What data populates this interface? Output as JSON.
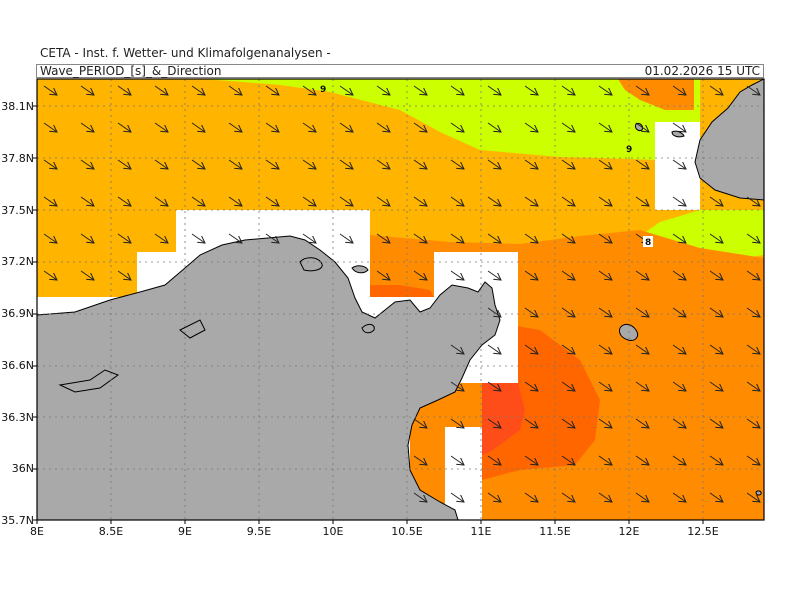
{
  "header": {
    "agency": "CETA - Inst. f. Wetter- und Klimafolgenanalysen -",
    "product": "Wave_PERIOD_[s]_&_Direction",
    "valid_time": "01.02.2026 15 UTC"
  },
  "axes": {
    "lon_labels": [
      "8E",
      "8.5E",
      "9E",
      "9.5E",
      "10E",
      "10.5E",
      "11E",
      "11.5E",
      "12E",
      "12.5E"
    ],
    "lat_labels": [
      "38.1N",
      "37.8N",
      "37.5N",
      "37.2N",
      "36.9N",
      "36.6N",
      "36.3N",
      "36N",
      "35.7N"
    ]
  },
  "contour_labels": [
    "9",
    "9",
    "8"
  ],
  "colors": {
    "land": "#a9a9a9",
    "no_data": "#ffffff",
    "period_9_10": "#ccff00",
    "period_8_9": "#ffb400",
    "period_7_8": "#ff8c00",
    "period_6_7": "#ff6600",
    "period_5_6": "#ff4d1a",
    "period_4_5": "#e8194d",
    "arrow": "#222222",
    "grid": "#777777"
  },
  "wave_direction": "southeast"
}
